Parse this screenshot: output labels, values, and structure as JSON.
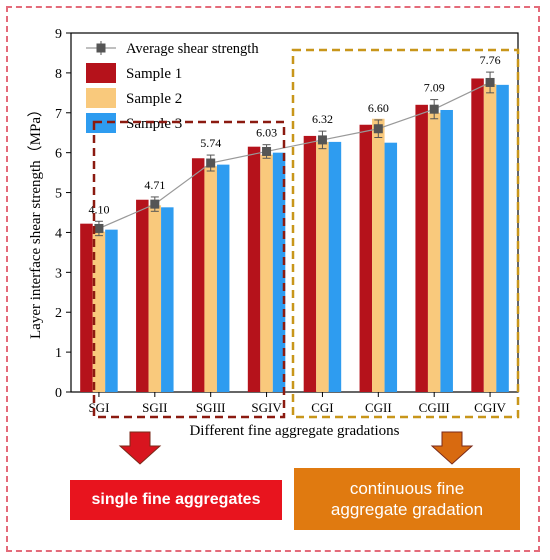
{
  "chart_data": {
    "type": "bar",
    "title": "",
    "xlabel": "Different fine aggregate gradations",
    "ylabel": "Layer interface shear strength（MPa）",
    "ylim": [
      0,
      9
    ],
    "yticks": [
      0,
      1,
      2,
      3,
      4,
      5,
      6,
      7,
      8,
      9
    ],
    "categories": [
      "SGI",
      "SGII",
      "SGIII",
      "SGIV",
      "CGI",
      "CGII",
      "CGIII",
      "CGIV"
    ],
    "series": [
      {
        "name": "Sample 1",
        "color": "#b5121b",
        "values": [
          4.22,
          4.82,
          5.86,
          6.15,
          6.42,
          6.7,
          7.2,
          7.86
        ]
      },
      {
        "name": "Sample 2",
        "color": "#f9c97c",
        "values": [
          4.02,
          4.68,
          5.66,
          5.95,
          6.27,
          6.85,
          7.0,
          7.72
        ]
      },
      {
        "name": "Sample 3",
        "color": "#2e9cf0",
        "values": [
          4.07,
          4.63,
          5.7,
          6.0,
          6.27,
          6.25,
          7.07,
          7.7
        ]
      }
    ],
    "average": {
      "name": "Average shear strength",
      "color": "#555555",
      "values": [
        4.1,
        4.71,
        5.74,
        6.03,
        6.32,
        6.6,
        7.09,
        7.76
      ],
      "labels": [
        "4.10",
        "4.71",
        "5.74",
        "6.03",
        "6.32",
        "6.60",
        "7.09",
        "7.76"
      ],
      "errors": [
        0.18,
        0.18,
        0.2,
        0.17,
        0.22,
        0.22,
        0.24,
        0.26
      ]
    },
    "legend_position": "top-left",
    "grid": false
  },
  "groups": {
    "left_label": "single fine aggregates",
    "right_label_line1": "continuous fine",
    "right_label_line2": "aggregate gradation",
    "left_color": "#e8141e",
    "right_color": "#e07a10",
    "left_arrow_color": "#d8151f",
    "right_arrow_color": "#d86a10",
    "left_box_color": "#8b1a10",
    "right_box_color": "#c8961a"
  }
}
